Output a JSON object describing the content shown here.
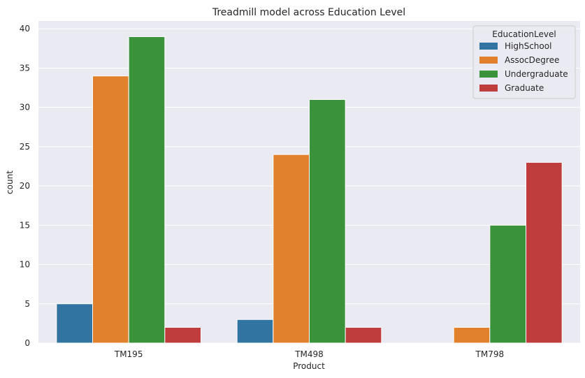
{
  "chart_data": {
    "type": "bar",
    "title": "Treadmill model across Education Level",
    "xlabel": "Product",
    "ylabel": "count",
    "categories": [
      "TM195",
      "TM498",
      "TM798"
    ],
    "ylim": [
      0,
      41
    ],
    "yticks": [
      0,
      5,
      10,
      15,
      20,
      25,
      30,
      35,
      40
    ],
    "grid": true,
    "legend": {
      "title": "EducationLevel",
      "placement": "top-right"
    },
    "series": [
      {
        "name": "HighSchool",
        "color": "#3274a1",
        "values": [
          5,
          3,
          0
        ]
      },
      {
        "name": "AssocDegree",
        "color": "#e1812c",
        "values": [
          34,
          24,
          2
        ]
      },
      {
        "name": "Undergraduate",
        "color": "#3a923a",
        "values": [
          39,
          31,
          15
        ]
      },
      {
        "name": "Graduate",
        "color": "#c03d3e",
        "values": [
          2,
          2,
          23
        ]
      }
    ]
  }
}
